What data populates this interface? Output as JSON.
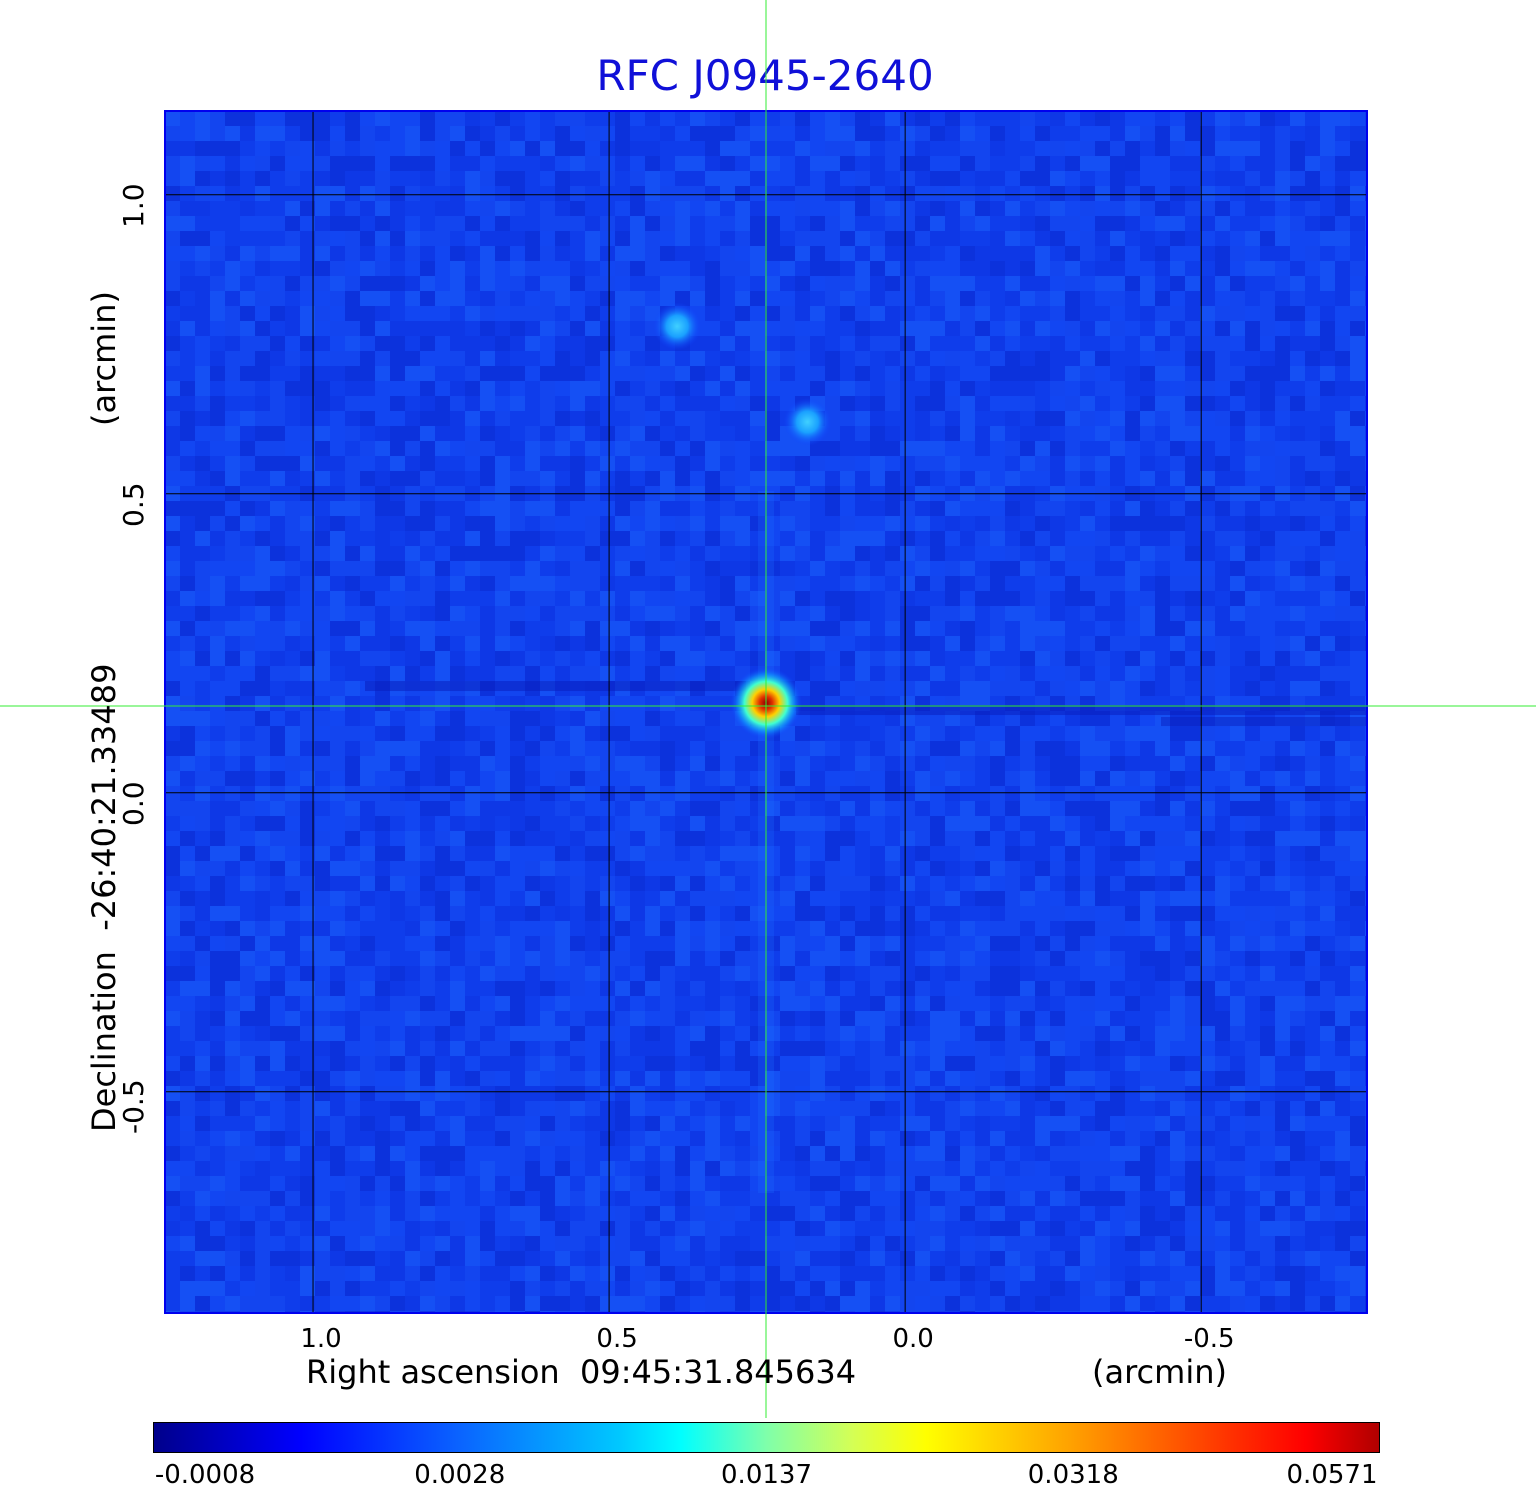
{
  "title": "RFC J0945-2640",
  "chart_data": {
    "type": "heatmap",
    "title": "RFC J0945-2640",
    "xlabel": "Right ascension  09:45:31.845634",
    "xlabel_unit": "(arcmin)",
    "ylabel": "Declination  -26:40:21.33489",
    "ylabel_unit": "(arcmin)",
    "x_ticks": [
      "1.0",
      "0.5",
      "0.0",
      "-0.5"
    ],
    "x_tick_values": [
      1.0,
      0.5,
      0.0,
      -0.5
    ],
    "y_ticks": [
      "1.0",
      "0.5",
      "0.0",
      "-0.5"
    ],
    "y_tick_values": [
      1.0,
      0.5,
      0.0,
      -0.5
    ],
    "xlim": [
      1.25,
      -0.78
    ],
    "ylim": [
      -0.87,
      1.14
    ],
    "grid": true,
    "crosshair": {
      "x": 0.235,
      "y": 0.145
    },
    "sources": [
      {
        "name": "main",
        "x": 0.235,
        "y": 0.15,
        "peak": 0.0571
      },
      {
        "name": "secondary-1",
        "x": 0.385,
        "y": 0.78,
        "peak": 0.006
      },
      {
        "name": "secondary-2",
        "x": 0.165,
        "y": 0.62,
        "peak": 0.0055
      }
    ],
    "colorbar": {
      "tick_labels": [
        "-0.0008",
        "0.0028",
        "0.0137",
        "0.0318",
        "0.0571"
      ],
      "colors": [
        "#00008b",
        "#0000ff",
        "#00ffff",
        "#ffff00",
        "#ff0000",
        "#b00000"
      ]
    }
  }
}
